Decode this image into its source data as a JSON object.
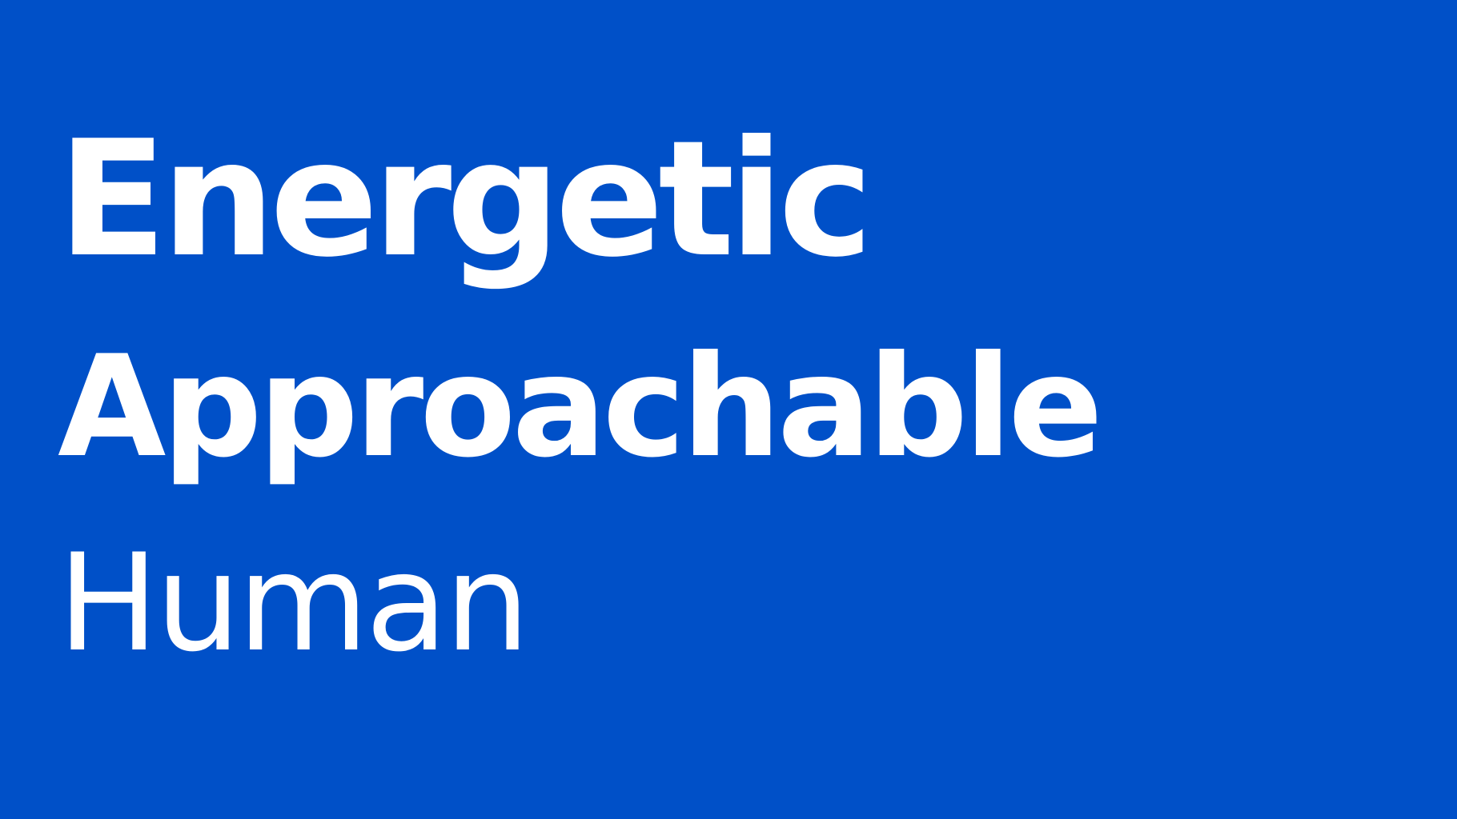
{
  "background_color": "#0050c8",
  "text_color": "#ffffff",
  "words": [
    "Energetic",
    "Approachable",
    "Human"
  ]
}
